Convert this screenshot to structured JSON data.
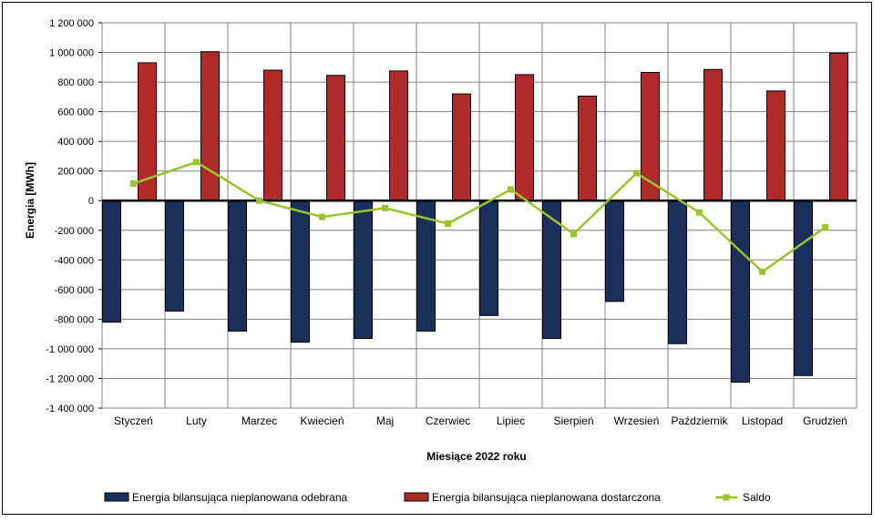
{
  "chart_data": {
    "type": "bar",
    "title": "",
    "xlabel": "Miesiące 2022  roku",
    "ylabel": "Energia [MWh]",
    "ylim": [
      -1400000,
      1200000
    ],
    "yticks": [
      1200000,
      1000000,
      800000,
      600000,
      400000,
      200000,
      0,
      -200000,
      -400000,
      -600000,
      -800000,
      -1000000,
      -1200000,
      -1400000
    ],
    "ytick_labels": [
      "1 200 000",
      "1 000 000",
      "800 000",
      "600 000",
      "400 000",
      "200 000",
      "0",
      "-200 000",
      "-400 000",
      "-600 000",
      "-800 000",
      "-1 000 000",
      "-1 200 000",
      "-1 400 000"
    ],
    "grid": true,
    "legend_position": "bottom",
    "categories": [
      "Styczeń",
      "Luty",
      "Marzec",
      "Kwiecień",
      "Maj",
      "Czerwiec",
      "Lipiec",
      "Sierpień",
      "Wrzesień",
      "Październik",
      "Listopad",
      "Grudzień"
    ],
    "series": [
      {
        "name": "Energia bilansująca nieplanowana odebrana",
        "kind": "bar",
        "color": "#1a2f5a",
        "values": [
          -820000,
          -745000,
          -880000,
          -955000,
          -930000,
          -880000,
          -775000,
          -930000,
          -680000,
          -965000,
          -1225000,
          -1180000
        ]
      },
      {
        "name": "Energia bilansująca nieplanowana dostarczona",
        "kind": "bar",
        "color": "#b02a2a",
        "values": [
          930000,
          1005000,
          880000,
          845000,
          875000,
          720000,
          850000,
          705000,
          865000,
          885000,
          740000,
          995000
        ]
      },
      {
        "name": "Saldo",
        "kind": "line",
        "color": "#9bc32a",
        "values": [
          115000,
          260000,
          0,
          -110000,
          -50000,
          -155000,
          75000,
          -225000,
          185000,
          -80000,
          -480000,
          -180000
        ]
      }
    ]
  }
}
